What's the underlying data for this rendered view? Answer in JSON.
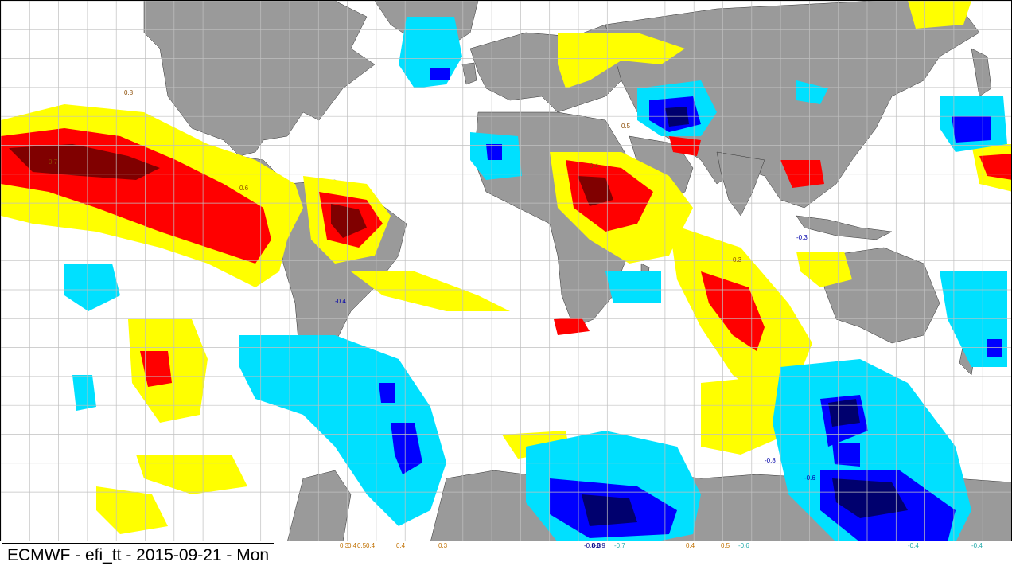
{
  "title": "ECMWF - efi_tt - 2015-09-21 - Mon",
  "colors": {
    "land": "#9a9a9a",
    "ocean": "#ffffff",
    "grid": "#c0c0c0",
    "pos_07": "#ffff00",
    "pos_08": "#ff0000",
    "pos_09": "#800000",
    "pos_contour": "#e08a00",
    "neg_07": "#00e0ff",
    "neg_08": "#0000ff",
    "neg_09": "#00006e",
    "neg_contour": "#33cccc"
  },
  "contour_labels": [
    {
      "text": "0.8",
      "c": "pos"
    },
    {
      "text": "0.7",
      "c": "pos"
    },
    {
      "text": "0.6",
      "c": "pos"
    },
    {
      "text": "0.5",
      "c": "pos"
    },
    {
      "text": "0.4",
      "c": "pos"
    },
    {
      "text": "0.3",
      "c": "pos"
    },
    {
      "text": "-0.3",
      "c": "neg"
    },
    {
      "text": "-0.4",
      "c": "neg"
    },
    {
      "text": "-0.6",
      "c": "neg"
    },
    {
      "text": "-0.8",
      "c": "neg"
    }
  ],
  "bottom_ticks": [
    {
      "text": "0.3",
      "c": "pos"
    },
    {
      "text": "0.4",
      "c": "pos"
    },
    {
      "text": "0.5",
      "c": "pos"
    },
    {
      "text": "0.4",
      "c": "pos"
    },
    {
      "text": "0.4",
      "c": "pos"
    },
    {
      "text": "0.3",
      "c": "pos"
    },
    {
      "text": "-0.8",
      "c": "negd"
    },
    {
      "text": "0.8",
      "c": "negd"
    },
    {
      "text": "-0.9",
      "c": "negd"
    },
    {
      "text": "-0.7",
      "c": "neg"
    },
    {
      "text": "0.4",
      "c": "pos"
    },
    {
      "text": "0.5",
      "c": "pos"
    },
    {
      "text": "-0.6",
      "c": "neg"
    },
    {
      "text": "-0.4",
      "c": "neg"
    },
    {
      "text": "-0.4",
      "c": "neg"
    }
  ]
}
